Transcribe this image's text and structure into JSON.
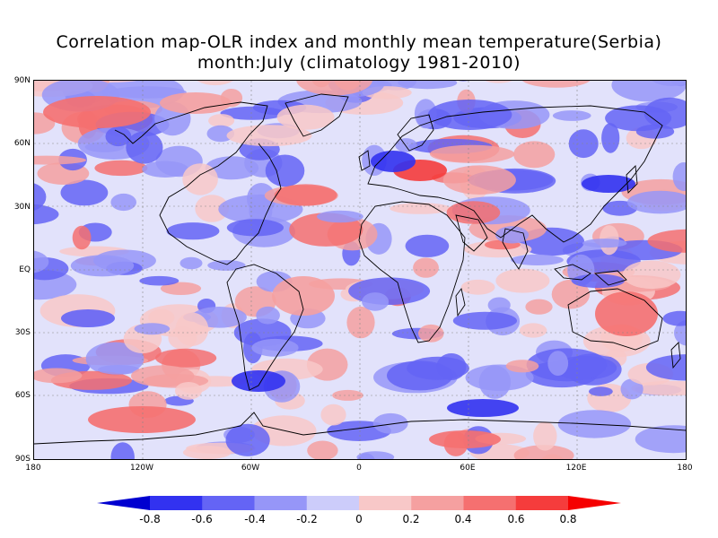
{
  "title": {
    "line1": "Correlation map-OLR index and monthly mean temperature(Serbia)",
    "line2": "month:July (climatology 1981-2010)"
  },
  "map": {
    "lat_labels": [
      "90N",
      "60N",
      "30N",
      "EQ",
      "30S",
      "60S",
      "90S"
    ],
    "lon_labels": [
      "180",
      "120W",
      "60W",
      "0",
      "60E",
      "120E",
      "180"
    ],
    "background_color": "#e2e2fb"
  },
  "colorbar": {
    "labels": [
      "-0.8",
      "-0.6",
      "-0.4",
      "-0.2",
      "0",
      "0.2",
      "0.4",
      "0.6",
      "0.8"
    ],
    "colors": [
      "#0000d0",
      "#3232f0",
      "#6464f5",
      "#9696f8",
      "#ccccfa",
      "#f8c8c8",
      "#f5a0a0",
      "#f57070",
      "#f53c3c",
      "#f50000"
    ]
  }
}
